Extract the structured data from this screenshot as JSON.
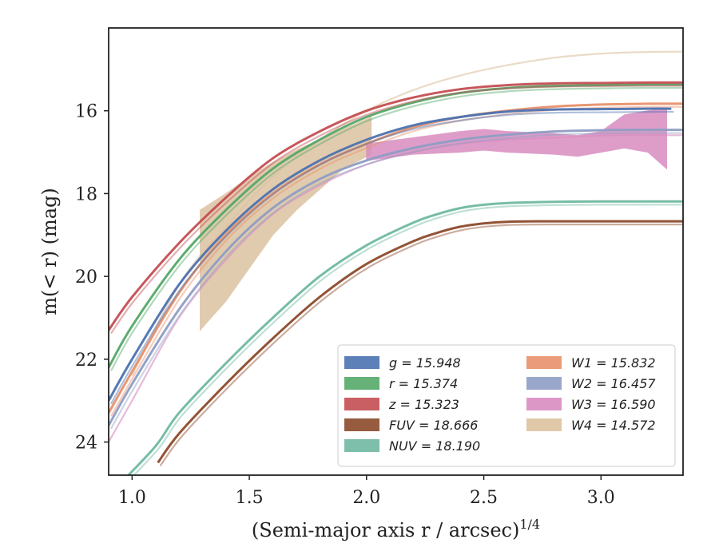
{
  "chart_data": {
    "type": "line",
    "xlabel": "(Semi-major axis r / arcsec)",
    "xlabel_sup": "1/4",
    "ylabel": "m(< r) (mag)",
    "xlim": [
      0.9,
      3.35
    ],
    "ylim": [
      24.8,
      14.0
    ],
    "x_ticks": [
      1.0,
      1.5,
      2.0,
      2.5,
      3.0
    ],
    "x_tick_labels": [
      "1.0",
      "1.5",
      "2.0",
      "2.5",
      "3.0"
    ],
    "y_ticks": [
      16,
      18,
      20,
      22,
      24
    ],
    "y_tick_labels": [
      "16",
      "18",
      "20",
      "22",
      "24"
    ],
    "grid": false,
    "legend_position": "lower-right",
    "series": [
      {
        "key": "g",
        "label": "g = 15.948",
        "color": "#4c72b0",
        "style": "line",
        "x": [
          0.9,
          1.0,
          1.2,
          1.4,
          1.6,
          1.8,
          2.0,
          2.2,
          2.4,
          2.6,
          2.8,
          3.0,
          3.2,
          3.3
        ],
        "y": [
          23.0,
          22.0,
          20.2,
          18.9,
          17.9,
          17.2,
          16.7,
          16.35,
          16.15,
          16.02,
          15.97,
          15.96,
          15.95,
          15.95
        ]
      },
      {
        "key": "r",
        "label": "r = 15.374",
        "color": "#55a868",
        "style": "line",
        "x": [
          0.9,
          1.0,
          1.2,
          1.4,
          1.6,
          1.8,
          2.0,
          2.2,
          2.4,
          2.6,
          2.8,
          3.0,
          3.2,
          3.35
        ],
        "y": [
          22.2,
          21.2,
          19.6,
          18.4,
          17.4,
          16.7,
          16.15,
          15.8,
          15.57,
          15.45,
          15.4,
          15.38,
          15.37,
          15.37
        ]
      },
      {
        "key": "z",
        "label": "z = 15.323",
        "color": "#c44e52",
        "style": "line",
        "x": [
          0.9,
          1.0,
          1.2,
          1.4,
          1.6,
          1.8,
          2.0,
          2.2,
          2.4,
          2.6,
          2.8,
          3.0,
          3.2,
          3.35
        ],
        "y": [
          21.3,
          20.5,
          19.2,
          18.1,
          17.15,
          16.5,
          16.0,
          15.68,
          15.48,
          15.38,
          15.34,
          15.33,
          15.32,
          15.32
        ]
      },
      {
        "key": "FUV",
        "label": "FUV = 18.666",
        "color": "#8c4a2a",
        "style": "line",
        "x": [
          1.11,
          1.2,
          1.4,
          1.6,
          1.8,
          2.0,
          2.2,
          2.3,
          2.4,
          2.5,
          2.6,
          2.75,
          3.0,
          3.35
        ],
        "y": [
          24.5,
          23.8,
          22.6,
          21.5,
          20.5,
          19.7,
          19.15,
          18.95,
          18.8,
          18.72,
          18.68,
          18.67,
          18.67,
          18.67
        ]
      },
      {
        "key": "NUV",
        "label": "NUV = 18.190",
        "color": "#6fb8a1",
        "style": "line",
        "x": [
          0.95,
          1.1,
          1.2,
          1.4,
          1.6,
          1.8,
          2.0,
          2.2,
          2.3,
          2.4,
          2.5,
          2.6,
          2.8,
          3.0,
          3.35
        ],
        "y": [
          25.0,
          24.1,
          23.3,
          22.1,
          21.0,
          20.0,
          19.25,
          18.7,
          18.5,
          18.35,
          18.27,
          18.23,
          18.2,
          18.19,
          18.19
        ]
      },
      {
        "key": "W1",
        "label": "W1 = 15.832",
        "color": "#e8906a",
        "style": "line",
        "x": [
          0.9,
          1.0,
          1.2,
          1.4,
          1.6,
          1.8,
          2.0,
          2.2,
          2.4,
          2.6,
          2.8,
          3.0,
          3.2,
          3.35
        ],
        "y": [
          23.3,
          22.3,
          20.4,
          19.0,
          18.0,
          17.3,
          16.8,
          16.4,
          16.15,
          16.0,
          15.9,
          15.85,
          15.83,
          15.83
        ]
      },
      {
        "key": "W2",
        "label": "W2 = 16.457",
        "color": "#8e9dc4",
        "style": "line",
        "x": [
          0.9,
          1.0,
          1.2,
          1.4,
          1.6,
          1.8,
          2.0,
          2.2,
          2.4,
          2.6,
          2.8,
          3.0,
          3.2,
          3.35
        ],
        "y": [
          23.6,
          22.6,
          20.8,
          19.4,
          18.35,
          17.65,
          17.2,
          16.9,
          16.7,
          16.58,
          16.5,
          16.47,
          16.46,
          16.46
        ]
      },
      {
        "key": "W3",
        "label": "W3 = 16.590",
        "color": "#d98cc0",
        "style": "band",
        "x": [
          0.9,
          1.0,
          1.2,
          1.4,
          1.6,
          1.8,
          2.0,
          2.2,
          2.4,
          2.6,
          2.8,
          3.0,
          3.2,
          3.35
        ],
        "y": [
          24.0,
          23.0,
          21.0,
          19.6,
          18.5,
          17.8,
          17.3,
          17.0,
          16.8,
          16.7,
          16.65,
          16.6,
          16.59,
          16.59
        ],
        "band_x": [
          2.0,
          2.2,
          2.4,
          2.5,
          2.6,
          2.8,
          2.9,
          3.0,
          3.1,
          3.2,
          3.28
        ],
        "band_low": [
          17.2,
          17.05,
          17.0,
          16.95,
          17.0,
          17.05,
          17.1,
          17.0,
          16.9,
          17.0,
          17.4
        ],
        "band_high": [
          16.8,
          16.65,
          16.5,
          16.45,
          16.5,
          16.55,
          16.6,
          16.5,
          16.1,
          16.0,
          15.95
        ]
      },
      {
        "key": "W4",
        "label": "W4 = 14.572",
        "color": "#dcc3a0",
        "style": "band",
        "x": [
          1.0,
          1.2,
          1.4,
          1.6,
          1.8,
          2.0,
          2.2,
          2.4,
          2.6,
          2.8,
          3.0,
          3.2,
          3.35
        ],
        "y": [
          22.4,
          20.2,
          18.8,
          17.6,
          16.7,
          16.0,
          15.5,
          15.15,
          14.9,
          14.72,
          14.62,
          14.58,
          14.57
        ],
        "band_x": [
          1.29,
          1.4,
          1.5,
          1.6,
          1.7,
          1.8,
          1.9,
          2.02
        ],
        "band_low": [
          21.3,
          20.6,
          19.8,
          19.0,
          18.4,
          17.9,
          17.4,
          17.05
        ],
        "band_high": [
          18.4,
          18.0,
          17.6,
          17.25,
          16.95,
          16.7,
          16.45,
          16.15
        ]
      }
    ]
  }
}
